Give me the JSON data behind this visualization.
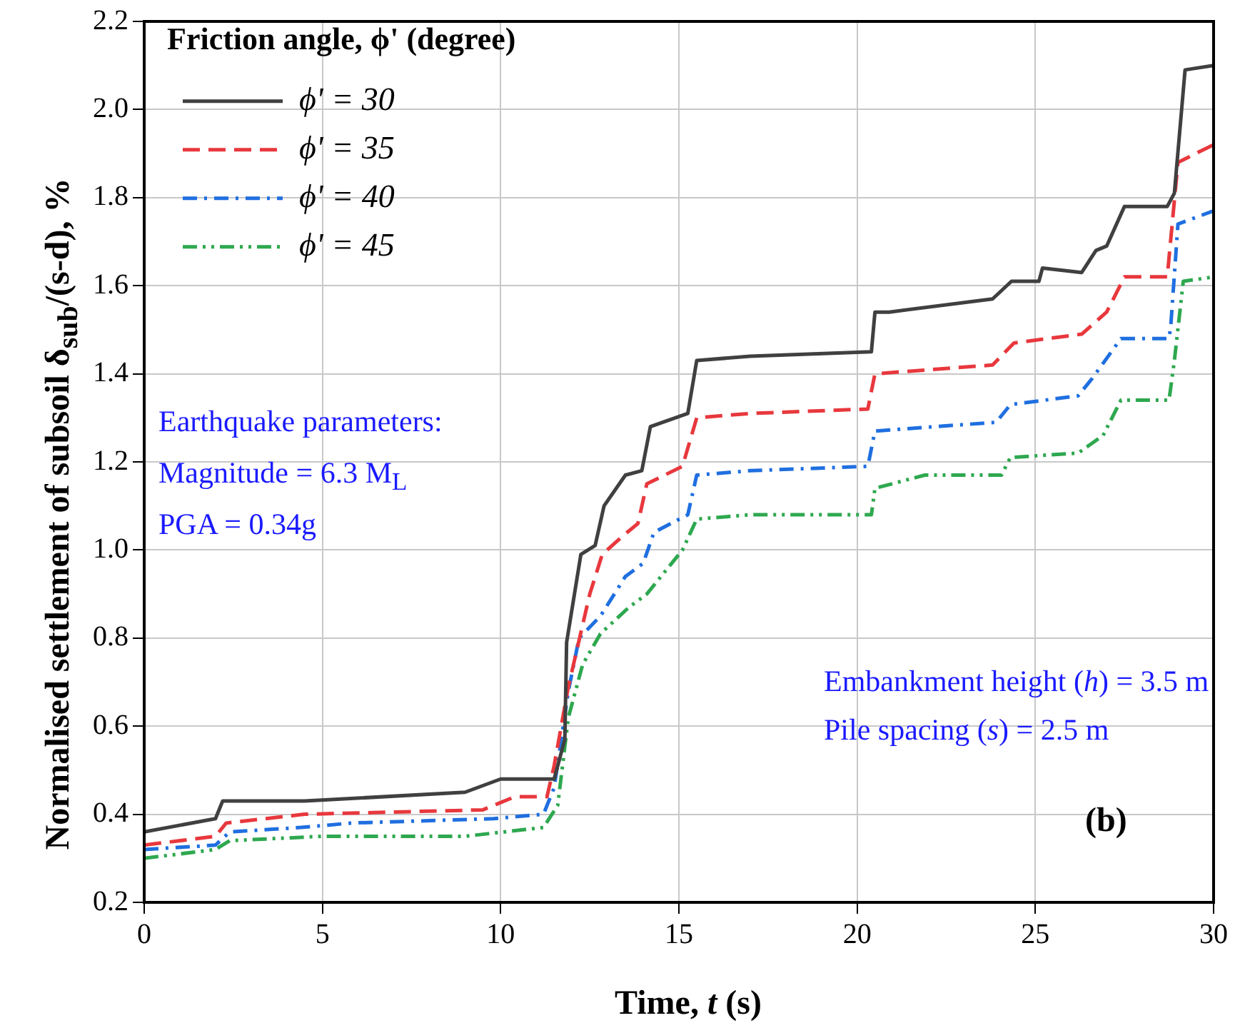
{
  "chart_data": {
    "type": "line",
    "xlabel": "Time, t (s)",
    "ylabel": "Normalised settlement of subsoil δ$_{sub}$/(s-d), %",
    "legend_title": "Friction angle, ϕ' (degree)",
    "xlim": [
      0,
      30
    ],
    "xticks": [
      0,
      5,
      10,
      15,
      20,
      25,
      30
    ],
    "ylim": [
      0.2,
      2.2
    ],
    "yticks": [
      0.2,
      0.4,
      0.6,
      0.8,
      {
        "value": 1,
        "label": "1.0"
      },
      1.2,
      1.4,
      1.6,
      1.8,
      {
        "value": 2,
        "label": "2.0"
      },
      2.2
    ],
    "grid": true,
    "legend": "top left",
    "marker": "none",
    "annotations": [
      "Earthquake parameters:",
      "Magnitude = 6.3 M$_{L}$",
      "PGA = 0.34g",
      "Embankment height (h) = 3.5 m",
      "Pile spacing (s) = 2.5 m",
      "(b)"
    ],
    "series": [
      {
        "name": "ϕ' = 30",
        "color": "#404040",
        "line_style": "solid",
        "x": [
          0,
          2,
          2.2,
          4.5,
          9,
          10,
          11.5,
          11.8,
          11.85,
          12.25,
          12.65,
          12.9,
          13.5,
          13.96,
          14.2,
          15.25,
          15.5,
          17,
          20.4,
          20.5,
          20.9,
          23.8,
          24.33,
          25.1,
          25.2,
          26.3,
          26.7,
          27.0,
          27.5,
          28.7,
          28.9,
          29.2,
          30
        ],
        "values": [
          0.36,
          0.39,
          0.43,
          0.43,
          0.45,
          0.48,
          0.48,
          0.57,
          0.79,
          0.99,
          1.01,
          1.1,
          1.17,
          1.18,
          1.28,
          1.31,
          1.43,
          1.44,
          1.45,
          1.54,
          1.54,
          1.57,
          1.61,
          1.61,
          1.64,
          1.63,
          1.68,
          1.69,
          1.78,
          1.78,
          1.81,
          2.09,
          2.1
        ]
      },
      {
        "name": "ϕ' = 35",
        "color": "#e8383d",
        "line_style": "dashed",
        "x": [
          0,
          2,
          2.3,
          4.5,
          9.5,
          10.4,
          11.3,
          11.5,
          11.9,
          12.5,
          12.85,
          13.4,
          13.85,
          14.1,
          15.1,
          15.5,
          17,
          20.3,
          20.5,
          23.8,
          24.4,
          26.3,
          27.0,
          27.5,
          28.7,
          29.0,
          30
        ],
        "values": [
          0.33,
          0.35,
          0.38,
          0.4,
          0.41,
          0.44,
          0.44,
          0.51,
          0.69,
          0.9,
          0.99,
          1.03,
          1.06,
          1.15,
          1.19,
          1.3,
          1.31,
          1.32,
          1.4,
          1.42,
          1.47,
          1.49,
          1.54,
          1.62,
          1.62,
          1.88,
          1.92
        ]
      },
      {
        "name": "ϕ' = 40",
        "color": "#1f6fe0",
        "line_style": "dashdot",
        "x": [
          0,
          2,
          2.4,
          4.4,
          5.8,
          9.8,
          11.2,
          11.5,
          11.9,
          12.2,
          12.8,
          13.5,
          14.0,
          14.3,
          15.25,
          15.5,
          17,
          20.3,
          20.5,
          23.9,
          24.3,
          26.2,
          26.6,
          27.4,
          28.75,
          28.8,
          29.0,
          30
        ],
        "values": [
          0.32,
          0.33,
          0.36,
          0.37,
          0.38,
          0.39,
          0.4,
          0.46,
          0.68,
          0.8,
          0.85,
          0.94,
          0.97,
          1.04,
          1.08,
          1.17,
          1.18,
          1.19,
          1.27,
          1.29,
          1.33,
          1.35,
          1.39,
          1.48,
          1.48,
          1.51,
          1.74,
          1.77
        ]
      },
      {
        "name": "ϕ' = 45",
        "color": "#2ea84f",
        "line_style": "dashdotdot",
        "x": [
          0,
          2,
          2.4,
          5,
          9,
          11.2,
          11.6,
          11.9,
          12.3,
          12.8,
          13.6,
          14.1,
          15.1,
          15.5,
          17,
          20.4,
          20.5,
          21.9,
          24.05,
          24.3,
          26.2,
          26.9,
          27.4,
          28.75,
          28.9,
          29.15,
          30
        ],
        "values": [
          0.3,
          0.32,
          0.34,
          0.35,
          0.35,
          0.37,
          0.42,
          0.62,
          0.74,
          0.81,
          0.87,
          0.9,
          1.0,
          1.07,
          1.08,
          1.08,
          1.14,
          1.17,
          1.17,
          1.21,
          1.22,
          1.26,
          1.34,
          1.34,
          1.43,
          1.61,
          1.62
        ]
      }
    ]
  }
}
